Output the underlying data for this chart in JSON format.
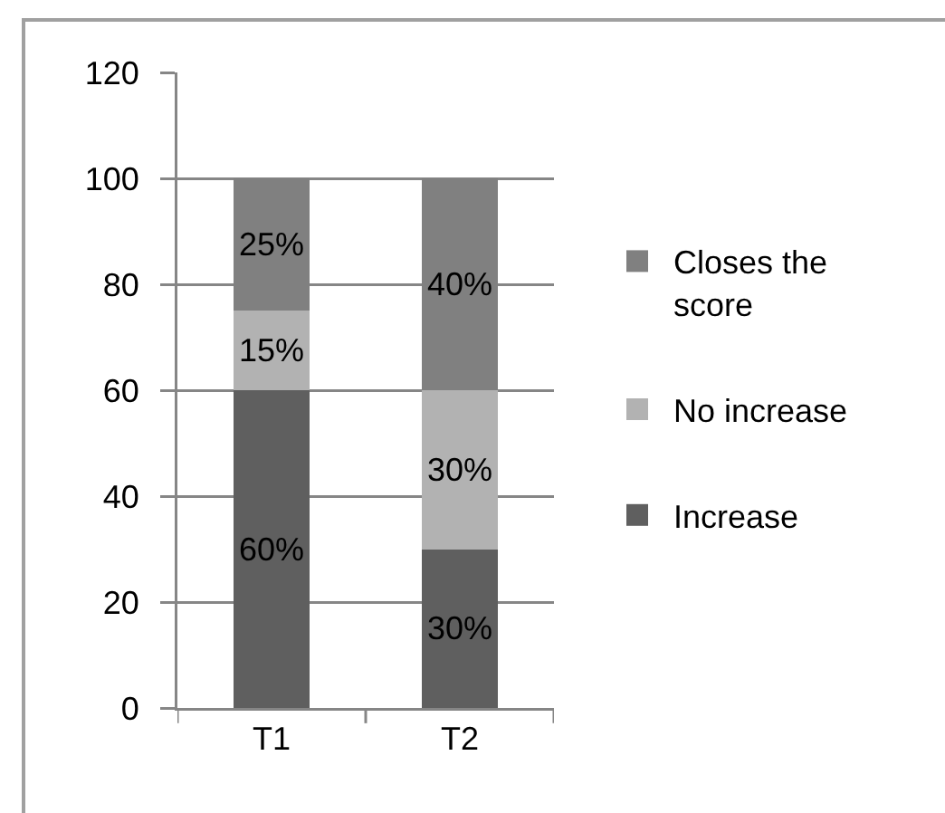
{
  "chart_data": {
    "type": "bar",
    "stacked": true,
    "categories": [
      "T1",
      "T2"
    ],
    "series": [
      {
        "name": "Increase",
        "color": "#5f5f5f",
        "values": [
          60,
          30
        ],
        "value_labels": [
          "60%",
          "30%"
        ]
      },
      {
        "name": "No increase",
        "color": "#b2b2b2",
        "values": [
          15,
          30
        ],
        "value_labels": [
          "15%",
          "30%"
        ]
      },
      {
        "name": "Closes the score",
        "color": "#808080",
        "values": [
          25,
          40
        ],
        "value_labels": [
          "25%",
          "40%"
        ]
      }
    ],
    "ylim": [
      0,
      120
    ],
    "yticks": [
      0,
      20,
      40,
      60,
      80,
      100,
      120
    ],
    "grid": "y",
    "legend": "right"
  }
}
